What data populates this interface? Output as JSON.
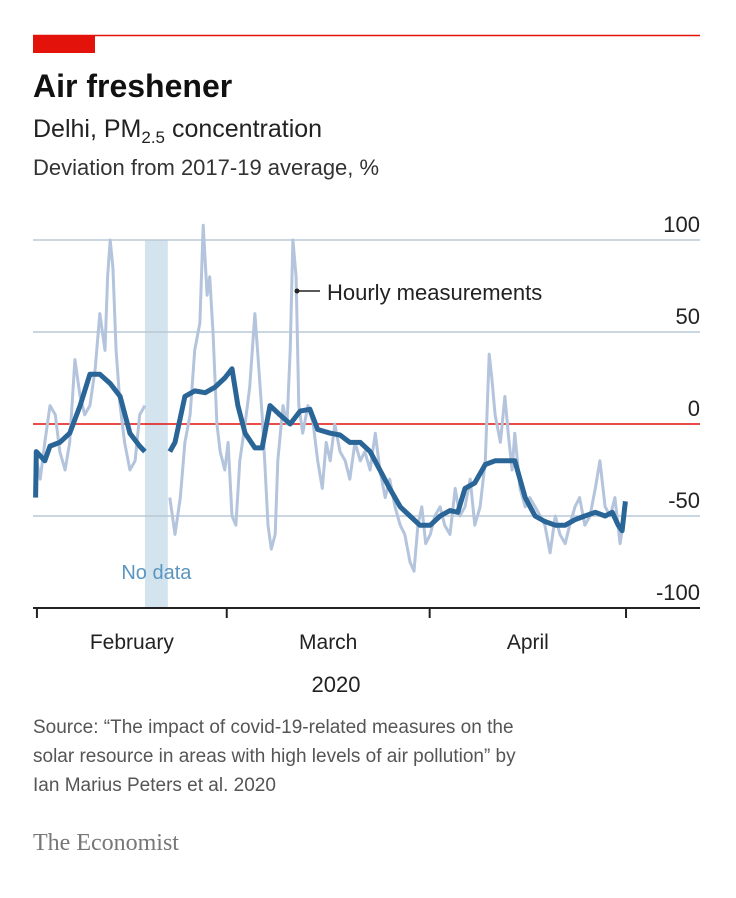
{
  "chart_data": {
    "type": "line",
    "title": "Air freshener",
    "subtitle": [
      "Delhi, PM",
      "2.5",
      " concentration"
    ],
    "y_label": "Deviation from 2017-19 average, %",
    "x_label": "2020",
    "x_categories": [
      "February",
      "March",
      "April"
    ],
    "xlim": [
      -0.6,
      101.3
    ],
    "xticks": [
      0,
      29,
      60,
      90
    ],
    "ylim": [
      -100,
      100
    ],
    "yticks": [
      100,
      50,
      0,
      -50,
      -100
    ],
    "grid": true,
    "zero_line_color": "#e3120b",
    "no_data": {
      "range": [
        16.5,
        20.0
      ],
      "label": "No data",
      "color": "#d3e4ef"
    },
    "series": [
      {
        "name": "Hourly measurements",
        "color": "#b3c4dc",
        "width": 3,
        "x": [
          -0.3,
          0.5,
          1.2,
          2.0,
          2.8,
          3.5,
          4.3,
          5.0,
          5.8,
          6.6,
          7.3,
          8.1,
          8.9,
          9.6,
          10.4,
          10.8,
          11.2,
          11.6,
          12.1,
          12.7,
          13.4,
          14.2,
          15.0,
          15.7,
          16.5,
          18,
          20.3,
          21.1,
          21.9,
          22.6,
          23.4,
          24.1,
          24.9,
          25.4,
          26.0,
          26.4,
          26.9,
          27.5,
          28.0,
          28.7,
          29.2,
          29.8,
          30.4,
          31.0,
          31.8,
          32.5,
          33.3,
          33.8,
          34.4,
          34.8,
          35.3,
          35.8,
          36.4,
          36.8,
          37.6,
          38.2,
          38.7,
          39.1,
          39.6,
          40.0,
          40.6,
          41.4,
          42.2,
          42.9,
          43.6,
          44.2,
          44.8,
          45.5,
          46.3,
          47.1,
          47.8,
          48.6,
          49.4,
          50.1,
          50.9,
          51.7,
          52.4,
          53.2,
          53.9,
          54.7,
          55.5,
          56.2,
          57.0,
          57.6,
          58.2,
          58.8,
          59.4,
          60.1,
          60.8,
          61.6,
          62.3,
          63.1,
          63.9,
          64.6,
          65.4,
          66.2,
          66.9,
          67.7,
          68.5,
          69.1,
          69.5,
          70.0,
          70.8,
          71.5,
          72.0,
          72.6,
          73.0,
          73.8,
          74.6,
          75.3,
          76.1,
          76.9,
          77.6,
          78.4,
          79.2,
          79.9,
          80.7,
          81.4,
          82.2,
          82.9,
          83.7,
          84.5,
          85.3,
          86.0,
          86.8,
          87.6,
          88.3,
          89.1,
          89.9
        ],
        "values": [
          -15,
          -30,
          -10,
          10,
          5,
          -15,
          -25,
          -10,
          35,
          15,
          5,
          10,
          30,
          60,
          40,
          80,
          100,
          85,
          40,
          10,
          -10,
          -25,
          -20,
          5,
          10,
          null,
          -40,
          -60,
          -40,
          -10,
          5,
          40,
          55,
          108,
          70,
          80,
          50,
          0,
          -15,
          -25,
          -10,
          -50,
          -55,
          -20,
          0,
          20,
          60,
          35,
          5,
          -20,
          -55,
          -68,
          -60,
          -20,
          10,
          0,
          40,
          100,
          80,
          10,
          -5,
          10,
          0,
          -20,
          -35,
          -10,
          -20,
          0,
          -15,
          -20,
          -30,
          -10,
          -20,
          -15,
          -25,
          -5,
          -25,
          -40,
          -30,
          -45,
          -55,
          -60,
          -75,
          -80,
          -55,
          -45,
          -65,
          -60,
          -50,
          -45,
          -55,
          -60,
          -35,
          -50,
          -45,
          -30,
          -55,
          -45,
          -20,
          38,
          25,
          5,
          -10,
          15,
          -5,
          -25,
          -5,
          -35,
          -45,
          -40,
          -45,
          -50,
          -55,
          -70,
          -50,
          -60,
          -65,
          -55,
          -45,
          -40,
          -55,
          -50,
          -35,
          -20,
          -45,
          -50,
          -40,
          -65,
          -45
        ]
      },
      {
        "color": "#2a6597",
        "width": 5,
        "x": [
          -0.2,
          -0.1,
          1.2,
          2.0,
          3.5,
          5.0,
          6.6,
          8.1,
          9.6,
          11.2,
          12.7,
          14.2,
          15.7,
          16.5,
          18,
          20.3,
          21.1,
          22.6,
          24.1,
          25.7,
          27.2,
          28.7,
          29.8,
          30.7,
          31.8,
          33.3,
          34.4,
          35.6,
          37.1,
          38.7,
          40.2,
          41.7,
          42.9,
          44.8,
          46.3,
          47.8,
          49.4,
          50.9,
          52.4,
          53.9,
          55.5,
          57.0,
          58.5,
          60.1,
          61.6,
          63.1,
          64.3,
          65.4,
          66.9,
          68.5,
          70.0,
          71.5,
          73.0,
          74.6,
          76.1,
          77.6,
          79.2,
          80.7,
          82.2,
          83.7,
          85.3,
          86.8,
          87.9,
          88.8,
          89.4,
          89.9
        ],
        "values": [
          -40,
          -15,
          -20,
          -12,
          -10,
          -5,
          10,
          27,
          27,
          22,
          15,
          -5,
          -12,
          -15,
          null,
          -15,
          -10,
          15,
          18,
          17,
          20,
          25,
          30,
          10,
          -5,
          -13,
          -13,
          10,
          5,
          0,
          7,
          8,
          -3,
          -5,
          -6,
          -10,
          -10,
          -15,
          -25,
          -35,
          -45,
          -50,
          -55,
          -55,
          -50,
          -47,
          -48,
          -35,
          -32,
          -22,
          -20,
          -20,
          -20,
          -40,
          -50,
          -53,
          -55,
          -55,
          -52,
          -50,
          -48,
          -50,
          -48,
          -55,
          -58,
          -42
        ]
      }
    ],
    "source": [
      "Source: “The impact of covid-19-related measures on the",
      "solar resource in areas with high levels of air pollution” by",
      "Ian Marius Peters et al. 2020"
    ],
    "brand": "The Economist"
  }
}
